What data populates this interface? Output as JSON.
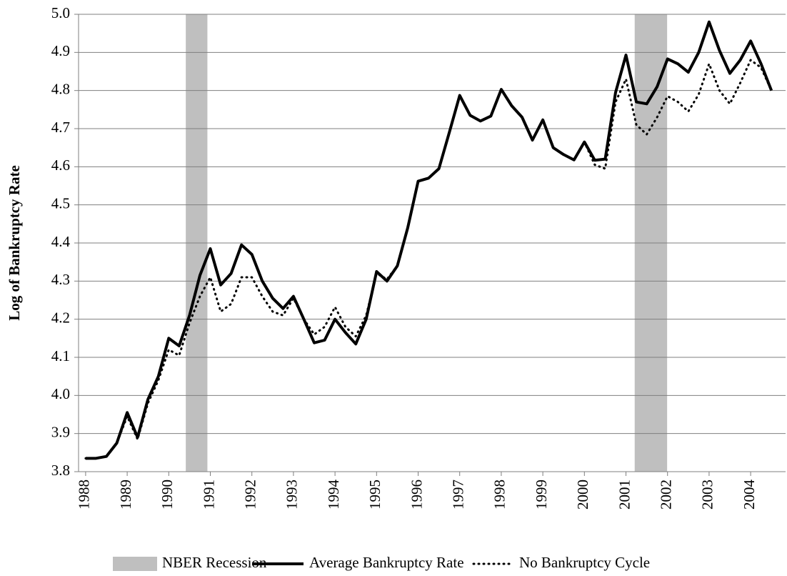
{
  "chart_data": {
    "type": "line",
    "y_label": "Log of Bankruptcy Rate",
    "x": [
      1988,
      1988.25,
      1988.5,
      1988.75,
      1989,
      1989.25,
      1989.5,
      1989.75,
      1990,
      1990.25,
      1990.5,
      1990.75,
      1991,
      1991.25,
      1991.5,
      1991.75,
      1992,
      1992.25,
      1992.5,
      1992.75,
      1993,
      1993.25,
      1993.5,
      1993.75,
      1994,
      1994.25,
      1994.5,
      1994.75,
      1995,
      1995.25,
      1995.5,
      1995.75,
      1996,
      1996.25,
      1996.5,
      1996.75,
      1997,
      1997.25,
      1997.5,
      1997.75,
      1998,
      1998.25,
      1998.5,
      1998.75,
      1999,
      1999.25,
      1999.5,
      1999.75,
      2000,
      2000.25,
      2000.5,
      2000.75,
      2001,
      2001.25,
      2001.5,
      2001.75,
      2002,
      2002.25,
      2002.5,
      2002.75,
      2003,
      2003.25,
      2003.5,
      2003.75,
      2004,
      2004.25,
      2004.5
    ],
    "series": [
      {
        "name": "Average Bankruptcy Rate",
        "color": "#000000",
        "style": "solid",
        "values": [
          3.835,
          3.835,
          3.84,
          3.875,
          3.955,
          3.89,
          3.99,
          4.05,
          4.15,
          4.13,
          4.21,
          4.315,
          4.385,
          4.29,
          4.32,
          4.395,
          4.37,
          4.3,
          4.255,
          4.228,
          4.26,
          4.2,
          4.138,
          4.145,
          4.2,
          4.165,
          4.135,
          4.2,
          4.325,
          4.3,
          4.34,
          4.44,
          4.562,
          4.57,
          4.595,
          4.69,
          4.787,
          4.735,
          4.72,
          4.733,
          4.803,
          4.76,
          4.73,
          4.67,
          4.723,
          4.65,
          4.632,
          4.618,
          4.665,
          4.617,
          4.62,
          4.795,
          4.893,
          4.77,
          4.765,
          4.81,
          4.883,
          4.87,
          4.848,
          4.9,
          4.98,
          4.905,
          4.845,
          4.88,
          4.93,
          4.87,
          4.8
        ]
      },
      {
        "name": "No Bankruptcy Cycle",
        "color": "#000000",
        "style": "dotted",
        "values": [
          3.835,
          3.835,
          3.84,
          3.875,
          3.945,
          3.885,
          3.98,
          4.04,
          4.12,
          4.105,
          4.19,
          4.26,
          4.31,
          4.22,
          4.24,
          4.31,
          4.31,
          4.26,
          4.22,
          4.21,
          4.255,
          4.2,
          4.16,
          4.18,
          4.232,
          4.18,
          4.155,
          4.21,
          4.32,
          4.305,
          4.34,
          4.44,
          4.562,
          4.57,
          4.595,
          4.69,
          4.787,
          4.735,
          4.72,
          4.733,
          4.803,
          4.76,
          4.73,
          4.67,
          4.723,
          4.65,
          4.632,
          4.618,
          4.665,
          4.605,
          4.595,
          4.77,
          4.83,
          4.71,
          4.685,
          4.73,
          4.785,
          4.77,
          4.745,
          4.79,
          4.87,
          4.8,
          4.765,
          4.82,
          4.88,
          4.86,
          4.8
        ]
      }
    ],
    "recession_name": "NBER Recession",
    "recession_color": "#bfbfbf",
    "recessions": [
      [
        1990.41,
        1990.93
      ],
      [
        2001.21,
        2001.99
      ]
    ],
    "xlim": [
      1987.83,
      2004.84
    ],
    "xticks": [
      1988,
      1989,
      1990,
      1991,
      1992,
      1993,
      1994,
      1995,
      1996,
      1997,
      1998,
      1999,
      2000,
      2001,
      2002,
      2003,
      2004
    ],
    "ylim": [
      3.8,
      5.0
    ],
    "yticks": [
      3.8,
      3.9,
      {
        "value": 4,
        "label": "4.0"
      },
      4.1,
      4.2,
      4.3,
      4.4,
      4.5,
      4.6,
      4.7,
      4.8,
      4.9,
      {
        "value": 5,
        "label": "5.0"
      }
    ],
    "grid": true,
    "legend": "bottom"
  }
}
